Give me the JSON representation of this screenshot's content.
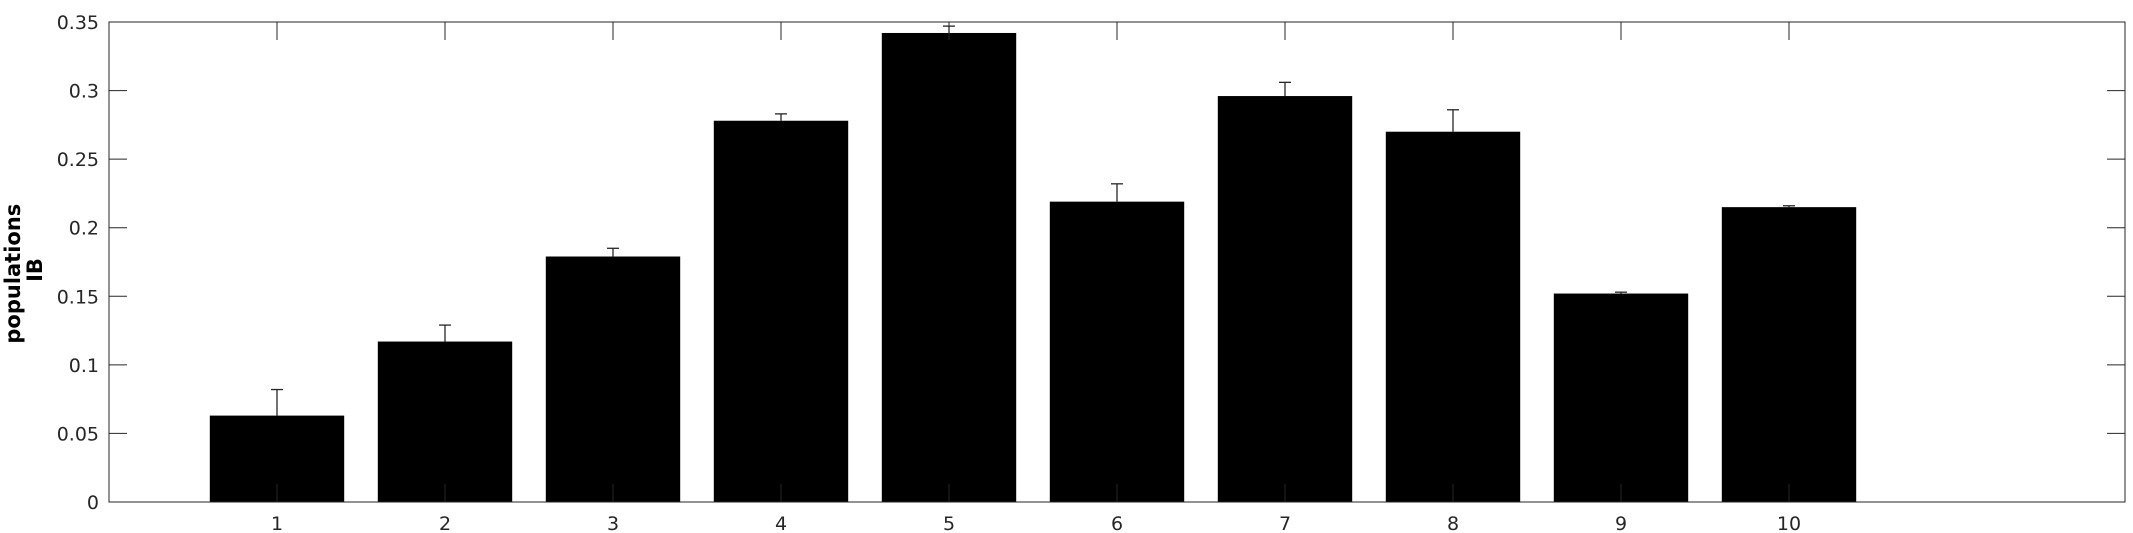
{
  "chart_data": {
    "type": "bar",
    "categories": [
      "1",
      "2",
      "3",
      "4",
      "5",
      "6",
      "7",
      "8",
      "9",
      "10"
    ],
    "values": [
      0.063,
      0.117,
      0.179,
      0.278,
      0.342,
      0.219,
      0.296,
      0.27,
      0.152,
      0.215
    ],
    "error_upper": [
      0.082,
      0.129,
      0.185,
      0.283,
      0.347,
      0.232,
      0.306,
      0.286,
      0.153,
      0.216
    ],
    "title": "",
    "xlabel": "",
    "ylabel_lines": [
      "populations",
      "IB"
    ],
    "xlim": [
      0,
      12
    ],
    "ylim": [
      0,
      0.35
    ],
    "yticks": [
      0,
      0.05,
      0.1,
      0.15,
      0.2,
      0.25,
      0.3,
      0.35
    ],
    "ytick_labels": [
      "0",
      "0.05",
      "0.1",
      "0.15",
      "0.2",
      "0.25",
      "0.3",
      "0.35"
    ],
    "grid": false,
    "legend": "none",
    "colors": {
      "bar": "#000000",
      "axis": "#262626"
    }
  }
}
